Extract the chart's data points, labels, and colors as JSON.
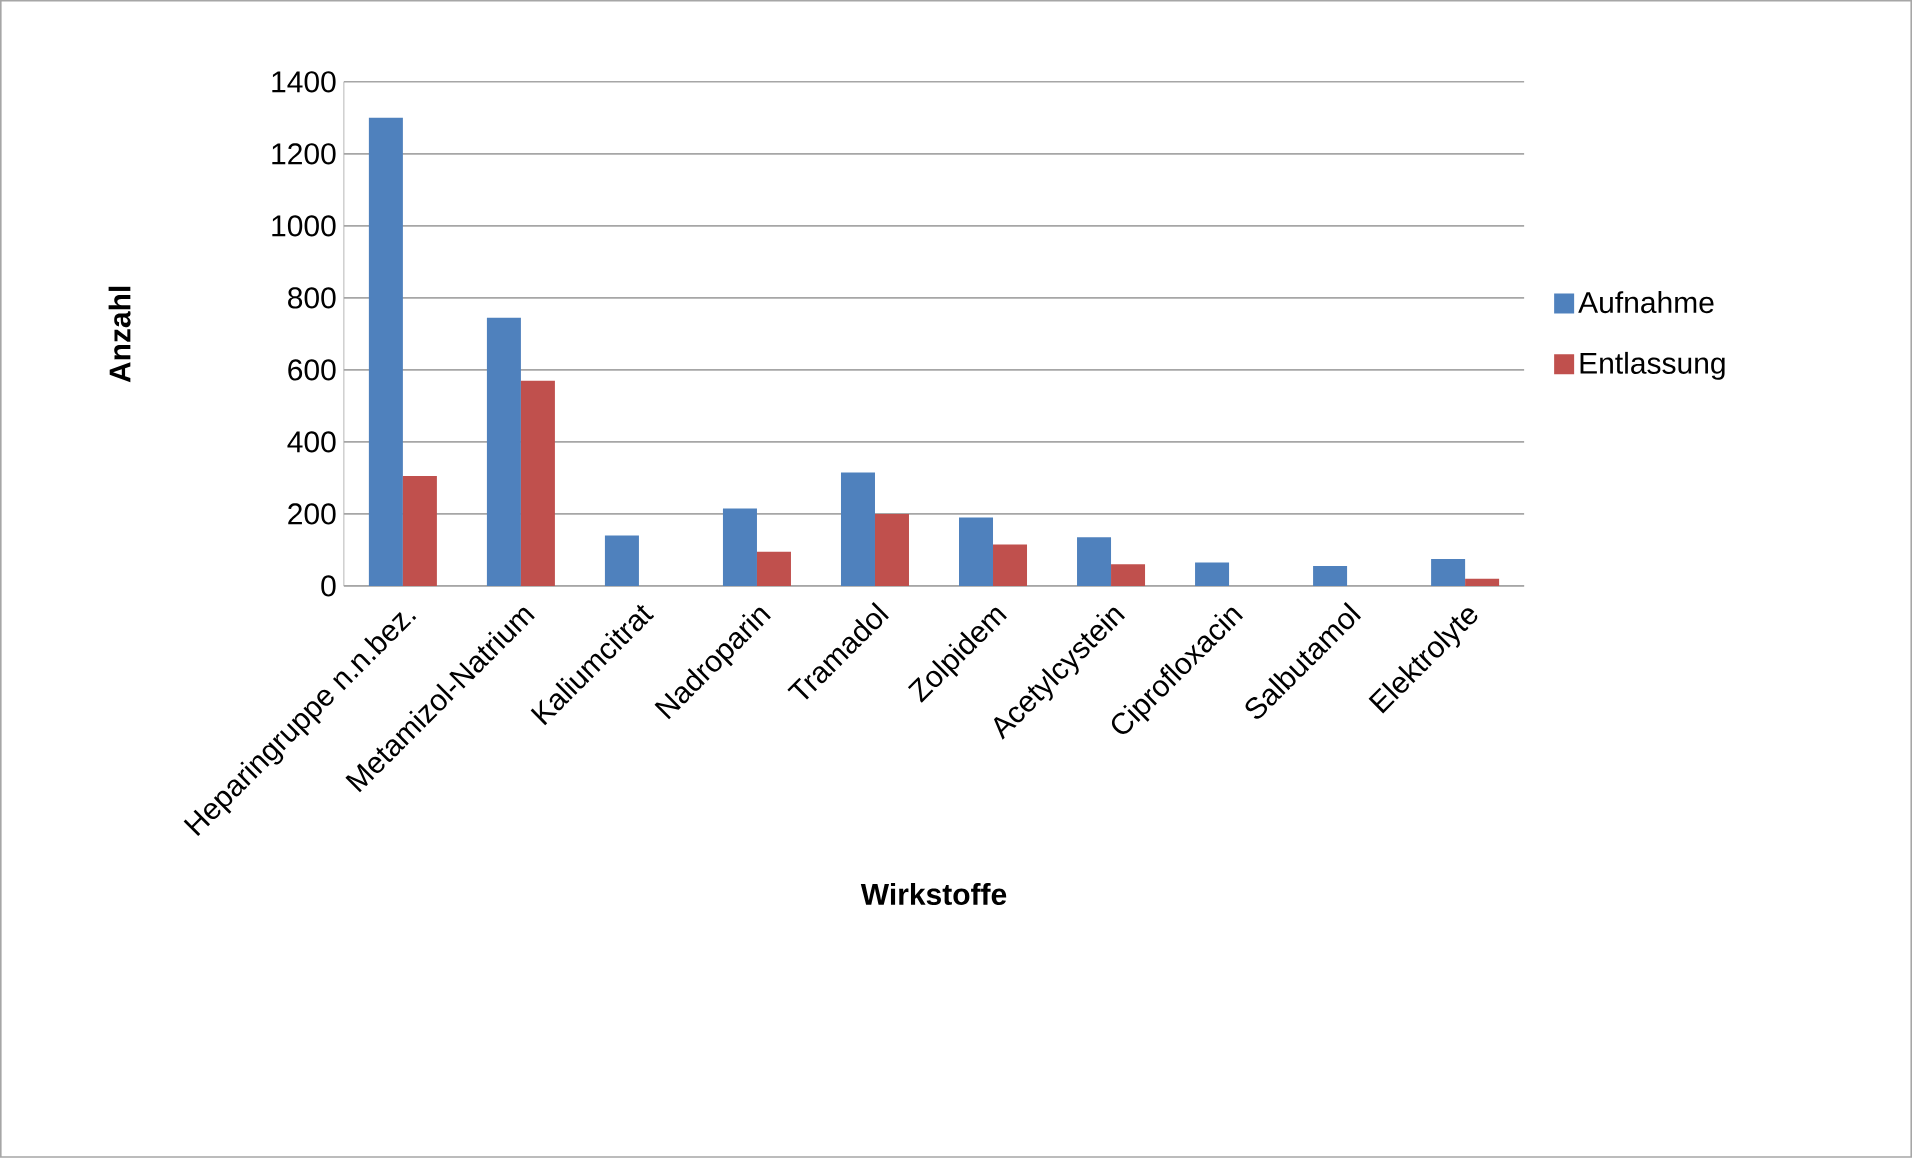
{
  "chart_data": {
    "type": "bar",
    "xlabel": "Wirkstoffe",
    "ylabel": "Anzahl",
    "categories": [
      "Heparingruppe n.n.bez.",
      "Metamizol-Natrium",
      "Kaliumcitrat",
      "Nadroparin",
      "Tramadol",
      "Zolpidem",
      "Acetylcystein",
      "Ciprofloxacin",
      "Salbutamol",
      "Elektrolyte"
    ],
    "series": [
      {
        "name": "Aufnahme",
        "color": "#4f81bd",
        "values": [
          1300,
          745,
          140,
          215,
          315,
          190,
          135,
          65,
          55,
          75
        ]
      },
      {
        "name": "Entlassung",
        "color": "#c0504d",
        "values": [
          305,
          570,
          null,
          95,
          200,
          115,
          60,
          null,
          null,
          20
        ]
      }
    ],
    "ylim": [
      0,
      1400
    ],
    "yticks": [
      0,
      200,
      400,
      600,
      800,
      1000,
      1200,
      1400
    ],
    "grid": "y",
    "legend": "right"
  }
}
